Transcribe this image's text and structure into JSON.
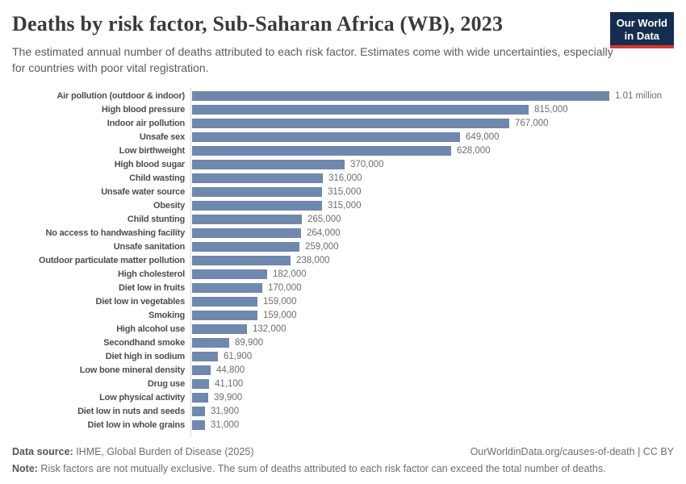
{
  "header": {
    "title": "Deaths by risk factor, Sub-Saharan Africa (WB), 2023",
    "subtitle": "The estimated annual number of deaths attributed to each risk factor. Estimates come with wide uncertainties, especially for countries with poor vital registration.",
    "logo": {
      "line1": "Our World",
      "line2": "in Data"
    }
  },
  "chart_data": {
    "type": "bar",
    "orientation": "horizontal",
    "title": "Deaths by risk factor, Sub-Saharan Africa (WB), 2023",
    "xlabel": "",
    "ylabel": "",
    "xlim": [
      0,
      1010000
    ],
    "grid": false,
    "legend": "none",
    "categories": [
      "Air pollution (outdoor & indoor)",
      "High blood pressure",
      "Indoor air pollution",
      "Unsafe sex",
      "Low birthweight",
      "High blood sugar",
      "Child wasting",
      "Unsafe water source",
      "Obesity",
      "Child stunting",
      "No access to handwashing facility",
      "Unsafe sanitation",
      "Outdoor particulate matter pollution",
      "High cholesterol",
      "Diet low in fruits",
      "Diet low in vegetables",
      "Smoking",
      "High alcohol use",
      "Secondhand smoke",
      "Diet high in sodium",
      "Low bone mineral density",
      "Drug use",
      "Low physical activity",
      "Diet low in nuts and seeds",
      "Diet low in whole grains"
    ],
    "values": [
      1010000,
      815000,
      767000,
      649000,
      628000,
      370000,
      316000,
      315000,
      315000,
      265000,
      264000,
      259000,
      238000,
      182000,
      170000,
      159000,
      159000,
      132000,
      89900,
      61900,
      44800,
      41100,
      39900,
      31900,
      31000
    ],
    "value_labels": [
      "1.01 million",
      "815,000",
      "767,000",
      "649,000",
      "628,000",
      "370,000",
      "316,000",
      "315,000",
      "315,000",
      "265,000",
      "264,000",
      "259,000",
      "238,000",
      "182,000",
      "170,000",
      "159,000",
      "159,000",
      "132,000",
      "89,900",
      "61,900",
      "44,800",
      "41,100",
      "39,900",
      "31,900",
      "31,000"
    ]
  },
  "footer": {
    "data_source_label": "Data source:",
    "data_source_value": " IHME, Global Burden of Disease (2025)",
    "link": "OurWorldinData.org/causes-of-death | CC BY",
    "note_label": "Note:",
    "note_text": " Risk factors are not mutually exclusive. The sum of deaths attributed to each risk factor can exceed the total number of deaths."
  },
  "colors": {
    "bar": "#7087ae",
    "axis": "#d9d9d9",
    "logo_navy": "#152d50",
    "logo_red": "#d7382d"
  }
}
